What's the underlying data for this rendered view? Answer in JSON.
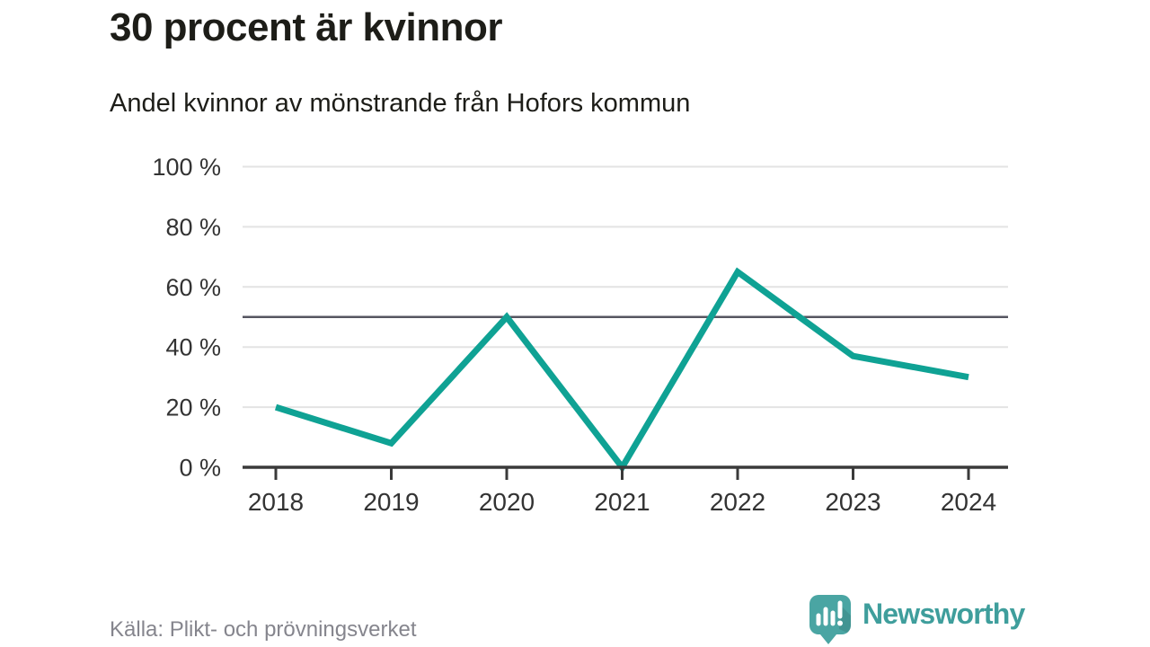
{
  "header": {
    "title": "30 procent är kvinnor",
    "subtitle": "Andel kvinnor av mönstrande från Hofors kommun"
  },
  "chart_data": {
    "type": "line",
    "title": "30 procent är kvinnor",
    "subtitle": "Andel kvinnor av mönstrande från Hofors kommun",
    "categories": [
      "2018",
      "2019",
      "2020",
      "2021",
      "2022",
      "2023",
      "2024"
    ],
    "series": [
      {
        "name": "Andel kvinnor av mönstrande",
        "values": [
          20,
          8,
          50,
          0,
          65,
          37,
          30
        ]
      }
    ],
    "unit": "%",
    "ylim": [
      0,
      100
    ],
    "yticks": [
      0,
      20,
      40,
      60,
      80,
      100
    ],
    "ytick_labels": [
      "0 %",
      "20 %",
      "40 %",
      "60 %",
      "80 %",
      "100 %"
    ],
    "reference_line": 50,
    "grid": true,
    "legend": "none",
    "colors": {
      "line": "#0fa294",
      "reference_line": "#565661",
      "gridline": "#e3e3e3",
      "axis": "#3a3a3a",
      "tick_label": "#333333"
    }
  },
  "footer": {
    "source": "Källa: Plikt- och prövningsverket"
  },
  "branding": {
    "name": "Newsworthy",
    "text_color": "#3f9e9c",
    "logo_color": "#4aa5a3"
  }
}
